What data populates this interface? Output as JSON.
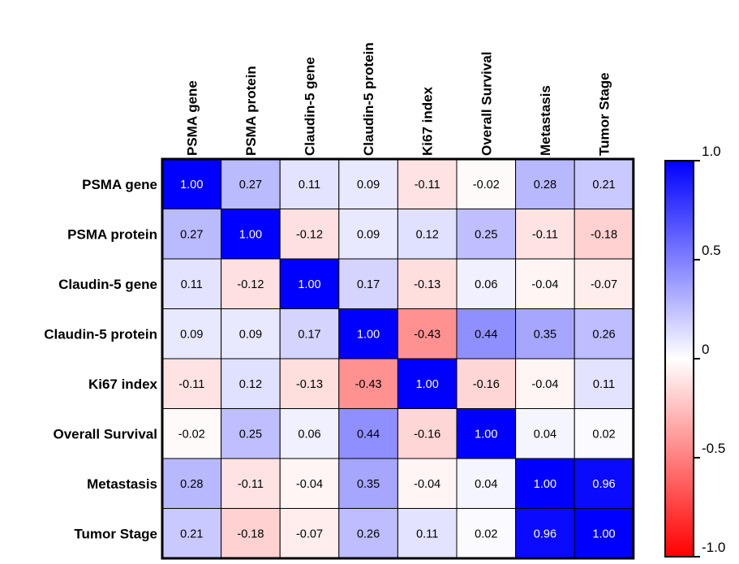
{
  "chart_data": {
    "type": "heatmap",
    "row_labels": [
      "PSMA gene",
      "PSMA protein",
      "Claudin-5 gene",
      "Claudin-5 protein",
      "Ki67 index",
      "Overall Survival",
      "Metastasis",
      "Tumor Stage"
    ],
    "col_labels": [
      "PSMA gene",
      "PSMA protein",
      "Claudin-5 gene",
      "Claudin-5 protein",
      "Ki67 index",
      "Overall Survival",
      "Metastasis",
      "Tumor Stage"
    ],
    "values": [
      [
        1.0,
        0.27,
        0.11,
        0.09,
        -0.11,
        -0.02,
        0.28,
        0.21
      ],
      [
        0.27,
        1.0,
        -0.12,
        0.09,
        0.12,
        0.25,
        -0.11,
        -0.18
      ],
      [
        0.11,
        -0.12,
        1.0,
        0.17,
        -0.13,
        0.06,
        -0.04,
        -0.07
      ],
      [
        0.09,
        0.09,
        0.17,
        1.0,
        -0.43,
        0.44,
        0.35,
        0.26
      ],
      [
        -0.11,
        0.12,
        -0.13,
        -0.43,
        1.0,
        -0.16,
        -0.04,
        0.11
      ],
      [
        -0.02,
        0.25,
        0.06,
        0.44,
        -0.16,
        1.0,
        0.04,
        0.02
      ],
      [
        0.28,
        -0.11,
        -0.04,
        0.35,
        -0.04,
        0.04,
        1.0,
        0.96
      ],
      [
        0.21,
        -0.18,
        -0.07,
        0.26,
        0.11,
        0.02,
        0.96,
        1.0
      ]
    ],
    "colorbar": {
      "ticks": [
        "1.0",
        "0.5",
        "0",
        "-0.5",
        "-1.0"
      ],
      "range": [
        -1.0,
        1.0
      ],
      "colors": {
        "low": "#ff0000",
        "mid": "#ffffff",
        "high": "#0000ff"
      }
    },
    "cell_text_color": {
      "dark": "#ffffff",
      "light": "#000000"
    }
  }
}
